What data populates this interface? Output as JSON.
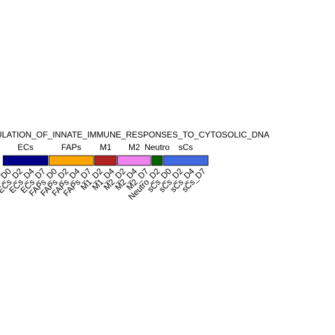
{
  "chart_data": {
    "type": "heatmap",
    "title": "REGULATION_OF_INNATE_IMMUNE_RESPONSES_TO_CYTOSOLIC_DNA",
    "groups": [
      {
        "name": "ECs",
        "color": "#00008B",
        "columns": [
          "ECs_D0",
          "ECs_D2",
          "ECs_D4",
          "ECs_D7"
        ]
      },
      {
        "name": "FAPs",
        "color": "#FFA500",
        "columns": [
          "FAPs_D0",
          "FAPs_D2",
          "FAPs_D4",
          "FAPs_D7"
        ]
      },
      {
        "name": "M1",
        "color": "#B22222",
        "columns": [
          "M1_D2",
          "M1_D4"
        ]
      },
      {
        "name": "M2",
        "color": "#EE82EE",
        "columns": [
          "M2_D2",
          "M2_D4",
          "M2_D7"
        ]
      },
      {
        "name": "Neutro",
        "color": "#006400",
        "columns": [
          "Neutro_D2"
        ]
      },
      {
        "name": "sCs",
        "color": "#4169E1",
        "columns": [
          "sCs_D0",
          "sCs_D2",
          "sCs_D4",
          "sCs_D7"
        ]
      }
    ]
  }
}
